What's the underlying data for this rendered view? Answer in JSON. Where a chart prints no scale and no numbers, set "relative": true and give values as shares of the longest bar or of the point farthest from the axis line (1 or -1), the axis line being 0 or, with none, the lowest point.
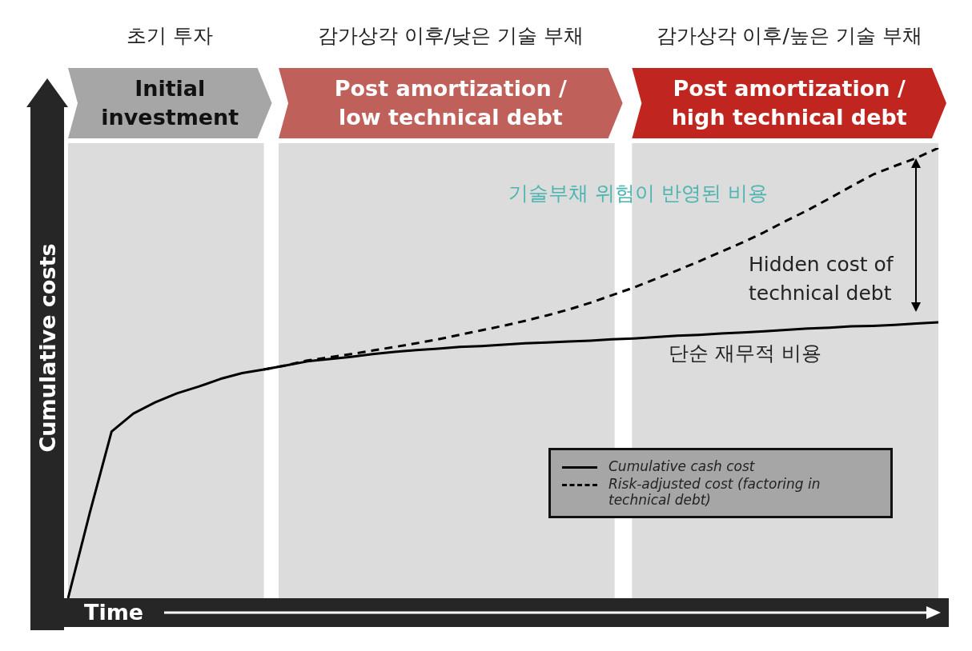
{
  "chart_data": {
    "type": "line",
    "relative": true,
    "xlabel": "Time",
    "ylabel": "Cumulative costs",
    "legend": "bottom right",
    "categories": [
      null,
      null,
      null,
      null,
      null,
      null,
      null,
      null,
      null,
      null,
      null,
      null,
      null,
      null,
      null,
      null,
      null,
      null,
      null,
      null,
      null,
      null,
      null,
      null,
      null,
      null,
      null,
      null,
      null,
      null,
      null,
      null,
      null,
      null,
      null,
      null,
      null,
      null,
      null,
      null,
      null
    ],
    "series": [
      {
        "name": "Cumulative cash cost",
        "color": "#000000",
        "line_style": "solid",
        "values": [
          0,
          0.19,
          0.37,
          0.41,
          0.435,
          0.455,
          0.47,
          0.487,
          0.5,
          0.508,
          0.517,
          0.526,
          0.531,
          0.536,
          0.542,
          0.547,
          0.551,
          0.554,
          0.558,
          0.56,
          0.563,
          0.566,
          0.568,
          0.57,
          0.572,
          0.575,
          0.577,
          0.58,
          0.583,
          0.585,
          0.588,
          0.59,
          0.593,
          0.596,
          0.599,
          0.601,
          0.604,
          0.605,
          0.607,
          0.61,
          0.613
        ]
      },
      {
        "name": "Risk-adjusted cost (factoring in technical debt)",
        "color": "#000000",
        "line_style": "dashed",
        "values": [
          null,
          null,
          null,
          null,
          null,
          null,
          null,
          null,
          null,
          0.508,
          0.517,
          0.528,
          0.535,
          0.542,
          0.55,
          0.558,
          0.566,
          0.575,
          0.585,
          0.595,
          0.605,
          0.616,
          0.628,
          0.641,
          0.656,
          0.673,
          0.69,
          0.709,
          0.728,
          0.748,
          0.769,
          0.79,
          0.813,
          0.838,
          0.862,
          0.888,
          0.915,
          0.941,
          0.96,
          0.978,
          1
        ]
      }
    ],
    "annotations": [
      "초기 투자",
      "감가상각 이후/낮은 기술 부채",
      "감가상각 이후/높은 기술 부채",
      "Initial investment",
      "Post amortization / low technical debt",
      "Post amortization / high technical debt",
      "기술부채 위험이 반영된 비용",
      "Hidden cost of technical debt",
      "단순 재무적 비용"
    ]
  }
}
